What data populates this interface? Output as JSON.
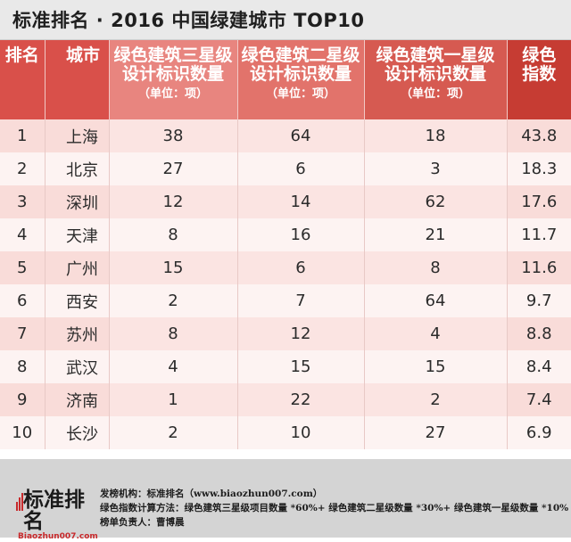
{
  "title": "标准排名 · 2016 中国绿建城市 TOP10",
  "table": {
    "headers": {
      "rank": "排名",
      "city": "城市",
      "three_star": [
        "绿色建筑三星级",
        "设计标识数量"
      ],
      "two_star": [
        "绿色建筑二星级",
        "设计标识数量"
      ],
      "one_star": [
        "绿色建筑一星级",
        "设计标识数量"
      ],
      "unit": "（单位：项）",
      "index": [
        "绿色",
        "指数"
      ]
    },
    "rows": [
      {
        "rank": "1",
        "city": "上海",
        "three": "38",
        "two": "64",
        "one": "18",
        "index": "43.8"
      },
      {
        "rank": "2",
        "city": "北京",
        "three": "27",
        "two": "6",
        "one": "3",
        "index": "18.3"
      },
      {
        "rank": "3",
        "city": "深圳",
        "three": "12",
        "two": "14",
        "one": "62",
        "index": "17.6"
      },
      {
        "rank": "4",
        "city": "天津",
        "three": "8",
        "two": "16",
        "one": "21",
        "index": "11.7"
      },
      {
        "rank": "5",
        "city": "广州",
        "three": "15",
        "two": "6",
        "one": "8",
        "index": "11.6"
      },
      {
        "rank": "6",
        "city": "西安",
        "three": "2",
        "two": "7",
        "one": "64",
        "index": "9.7"
      },
      {
        "rank": "7",
        "city": "苏州",
        "three": "8",
        "two": "12",
        "one": "4",
        "index": "8.8"
      },
      {
        "rank": "8",
        "city": "武汉",
        "three": "4",
        "two": "15",
        "one": "15",
        "index": "8.4"
      },
      {
        "rank": "9",
        "city": "济南",
        "three": "1",
        "two": "22",
        "one": "2",
        "index": "7.4"
      },
      {
        "rank": "10",
        "city": "长沙",
        "three": "2",
        "two": "10",
        "one": "27",
        "index": "6.9"
      }
    ]
  },
  "footer": {
    "logo_main": "标准排名",
    "logo_sub": "Biaozhun007.com",
    "publisher": "发榜机构：标准排名（www.biaozhun007.com）",
    "formula": "绿色指数计算方法：绿色建筑三星级项目数量 *60%+ 绿色建筑二星级数量 *30%+ 绿色建筑一星级数量 *10%",
    "owner": "榜单负责人：曹博晨"
  },
  "colors": {
    "header_rank": "#d9504a",
    "header_three": "#e8857f",
    "header_two": "#e2736b",
    "header_one": "#d65a51",
    "header_index": "#c63c33",
    "row_odd": "#fbe4e2",
    "row_even": "#fdf3f2",
    "footer_bg": "#d4d4d4",
    "logo_red": "#c8292b"
  }
}
